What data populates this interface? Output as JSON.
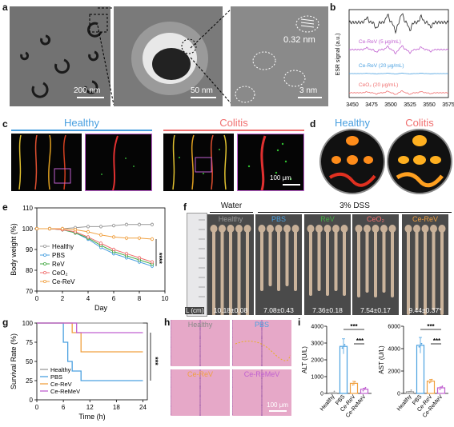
{
  "panels": {
    "a": {
      "label": "a",
      "scalebars": [
        "200 nm",
        "50 nm",
        "3 nm"
      ],
      "lattice": "0.32 nm"
    },
    "b": {
      "label": "b",
      "ylabel": "ESR signal (a.u.)",
      "xticks": [
        "3450",
        "3475",
        "3500",
        "3525",
        "3550",
        "3575"
      ],
      "traces": [
        {
          "name": "",
          "color": "#222222"
        },
        {
          "name": "Ce-ReV (5 μg/mL)",
          "color": "#c060d0"
        },
        {
          "name": "Ce-ReV (20 μg/mL)",
          "color": "#4aa0e0"
        },
        {
          "name": "CeO₂ (20 μg/mL)",
          "color": "#f07070"
        }
      ]
    },
    "c": {
      "label": "c",
      "healthy": "Healthy",
      "colitis": "Colitis",
      "scalebar": "100 μm"
    },
    "d": {
      "label": "d",
      "healthy": "Healthy",
      "colitis": "Colitis"
    },
    "e": {
      "label": "e",
      "sig": "****"
    },
    "f": {
      "label": "f",
      "water": "Water",
      "dss": "3% DSS",
      "ruler": "L (cm)",
      "groups": [
        {
          "name": "Healthy",
          "color": "#999999",
          "length": "10.18±0.08"
        },
        {
          "name": "PBS",
          "color": "#4aa0e0",
          "length": "7.08±0.43"
        },
        {
          "name": "ReV",
          "color": "#44aa44",
          "length": "7.36±0.18"
        },
        {
          "name": "CeO₂",
          "color": "#f07070",
          "length": "7.54±0.17"
        },
        {
          "name": "Ce-ReV",
          "color": "#f0a040",
          "length": "9.44±0.37*"
        }
      ]
    },
    "g": {
      "label": "g",
      "sig": "***"
    },
    "h": {
      "label": "h",
      "tiles": [
        {
          "name": "Healthy",
          "color": "#888888"
        },
        {
          "name": "PBS",
          "color": "#4aa0e0"
        },
        {
          "name": "Ce-ReV",
          "color": "#f0a040"
        },
        {
          "name": "Ce-ReMeV",
          "color": "#c060d0"
        }
      ],
      "scalebar": "100 μm"
    },
    "i": {
      "label": "i",
      "sig": "***"
    }
  },
  "chart_data": [
    {
      "type": "line",
      "panel": "e",
      "xlabel": "Day",
      "ylabel": "Body weight (%)",
      "xlim": [
        0,
        10
      ],
      "ylim": [
        70,
        110
      ],
      "xticks": [
        0,
        2,
        4,
        6,
        8,
        10
      ],
      "yticks": [
        70,
        80,
        90,
        100,
        110
      ],
      "legend": "bottom-left",
      "x": [
        0,
        1,
        2,
        3,
        4,
        5,
        6,
        7,
        8,
        9
      ],
      "series": [
        {
          "name": "Healthy",
          "color": "#999999",
          "values": [
            100,
            100,
            100,
            100.5,
            101,
            101,
            101.5,
            102,
            102,
            102
          ]
        },
        {
          "name": "PBS",
          "color": "#4aa0e0",
          "values": [
            100,
            100,
            99.5,
            98,
            95,
            91,
            88,
            86,
            84,
            82
          ]
        },
        {
          "name": "ReV",
          "color": "#44aa44",
          "values": [
            100,
            100,
            99.5,
            98,
            95.5,
            92,
            89,
            87,
            85,
            83
          ]
        },
        {
          "name": "CeO₂",
          "color": "#f07070",
          "values": [
            100,
            100,
            99.5,
            98.5,
            96,
            93,
            90,
            88,
            86,
            84
          ]
        },
        {
          "name": "Ce-ReV",
          "color": "#f0a040",
          "values": [
            100,
            100,
            100,
            99.5,
            98.5,
            97,
            96,
            95.5,
            95.5,
            95
          ]
        }
      ]
    },
    {
      "type": "line",
      "panel": "g",
      "xlabel": "Time (h)",
      "ylabel": "Survival Rate (%)",
      "xlim": [
        0,
        25
      ],
      "ylim": [
        0,
        100
      ],
      "xticks": [
        0,
        6,
        12,
        18,
        24
      ],
      "yticks": [
        0,
        25,
        50,
        75,
        100
      ],
      "legend": "bottom-left",
      "series": [
        {
          "name": "Healthy",
          "color": "#999999",
          "steps": [
            [
              0,
              100
            ],
            [
              24,
              100
            ]
          ]
        },
        {
          "name": "PBS",
          "color": "#4aa0e0",
          "steps": [
            [
              0,
              100
            ],
            [
              6,
              100
            ],
            [
              6,
              75
            ],
            [
              7,
              75
            ],
            [
              7,
              50
            ],
            [
              8,
              50
            ],
            [
              8,
              37.5
            ],
            [
              10,
              37.5
            ],
            [
              10,
              25
            ],
            [
              24,
              25
            ]
          ]
        },
        {
          "name": "Ce-ReV",
          "color": "#f0a040",
          "steps": [
            [
              0,
              100
            ],
            [
              8,
              100
            ],
            [
              8,
              87.5
            ],
            [
              10,
              87.5
            ],
            [
              10,
              62.5
            ],
            [
              24,
              62.5
            ]
          ]
        },
        {
          "name": "Ce-ReMeV",
          "color": "#c060d0",
          "steps": [
            [
              0,
              100
            ],
            [
              9,
              100
            ],
            [
              9,
              87.5
            ],
            [
              24,
              87.5
            ]
          ]
        }
      ]
    },
    {
      "type": "bar",
      "panel": "i-left",
      "ylabel": "ALT (U/L)",
      "ylim": [
        0,
        4000
      ],
      "yticks": [
        0,
        1000,
        2000,
        3000,
        4000
      ],
      "categories": [
        "Healthy",
        "PBS",
        "Ce-ReV",
        "Ce-ReMeV"
      ],
      "colors": [
        "#999999",
        "#4aa0e0",
        "#f0a040",
        "#c060d0"
      ],
      "values": [
        30,
        2800,
        600,
        250
      ],
      "errors": [
        10,
        450,
        120,
        60
      ]
    },
    {
      "type": "bar",
      "panel": "i-right",
      "ylabel": "AST (U/L)",
      "ylim": [
        0,
        6000
      ],
      "yticks": [
        0,
        2000,
        4000,
        6000
      ],
      "categories": [
        "Healthy",
        "PBS",
        "Ce-ReV",
        "Ce-ReMeV"
      ],
      "colors": [
        "#999999",
        "#4aa0e0",
        "#f0a040",
        "#c060d0"
      ],
      "values": [
        150,
        4300,
        1100,
        500
      ],
      "errors": [
        40,
        700,
        150,
        80
      ]
    }
  ]
}
